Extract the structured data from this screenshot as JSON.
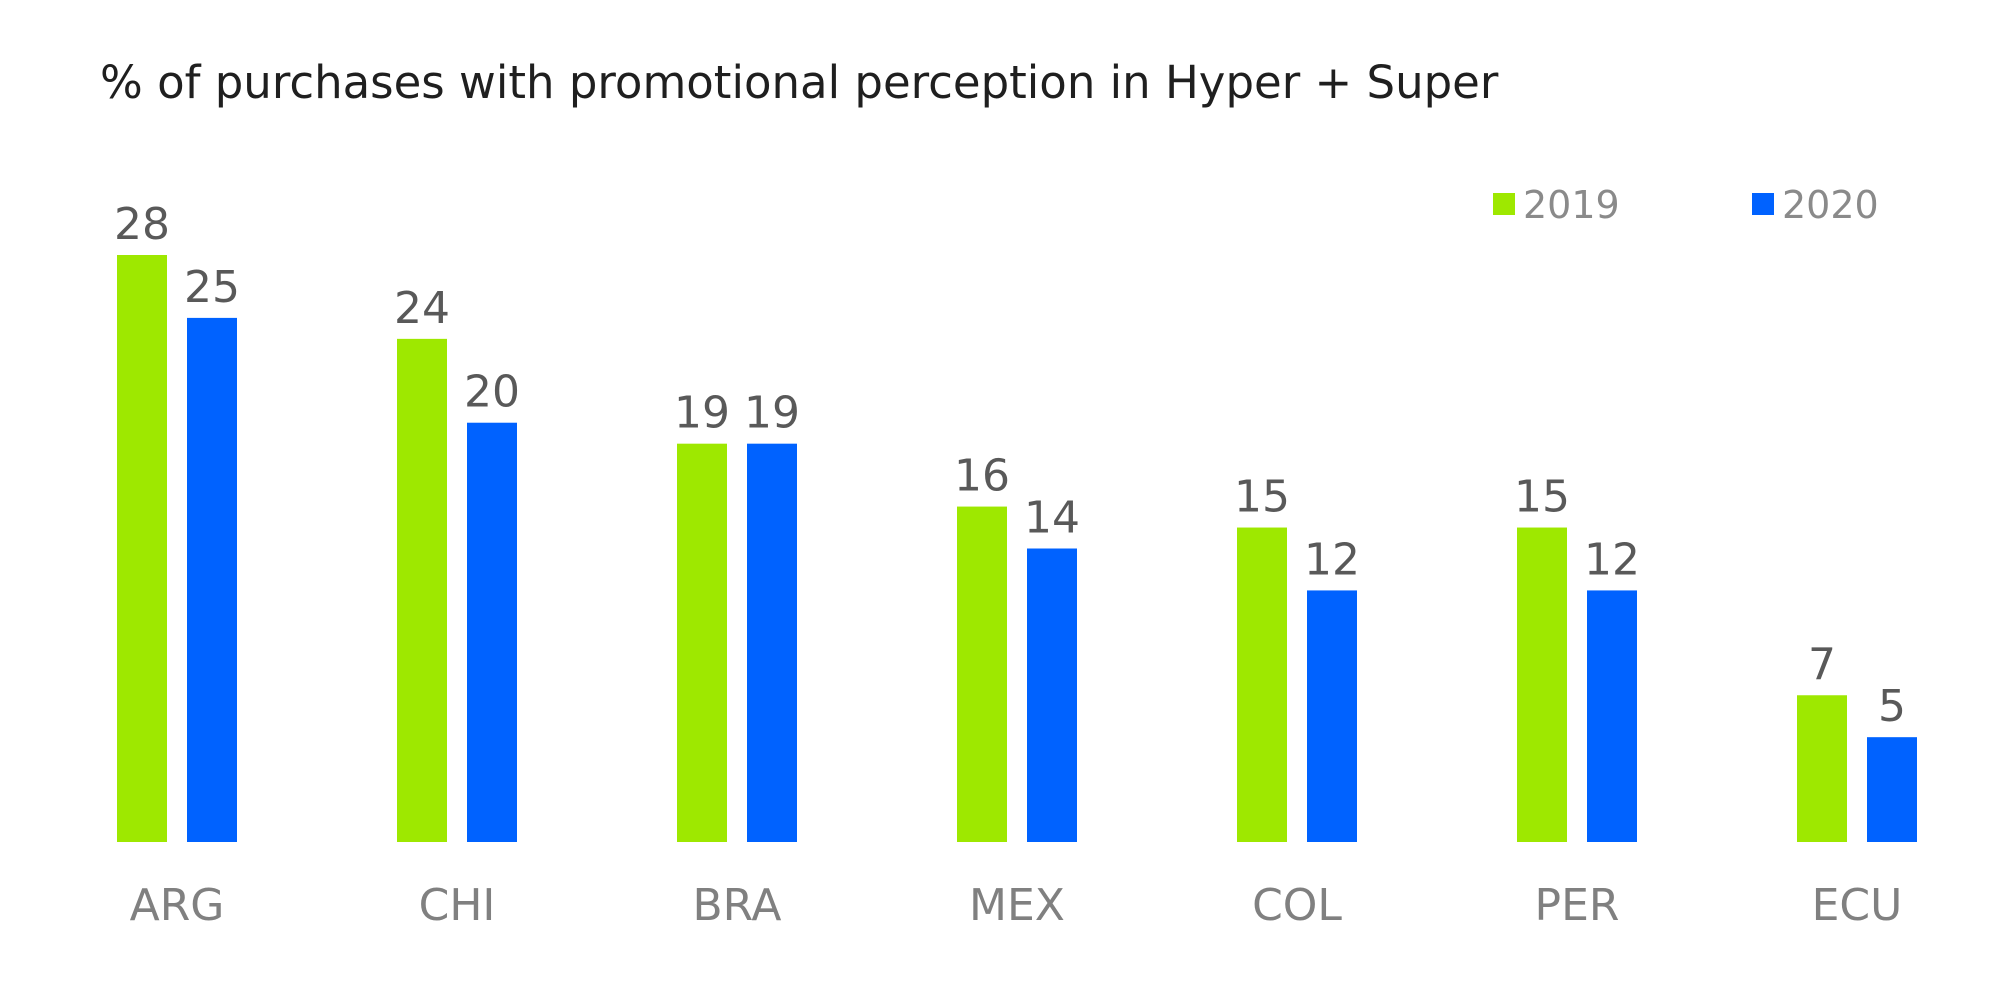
{
  "chart_data": {
    "type": "bar",
    "title": "% of purchases with promotional perception in Hyper + Super",
    "xlabel": "",
    "ylabel": "",
    "categories": [
      "ARG",
      "CHI",
      "BRA",
      "MEX",
      "COL",
      "PER",
      "ECU"
    ],
    "series": [
      {
        "name": "2019",
        "color": "#9EE800",
        "values": [
          28,
          24,
          19,
          16,
          15,
          15,
          7
        ]
      },
      {
        "name": "2020",
        "color": "#0062FF",
        "values": [
          25,
          20,
          19,
          14,
          12,
          12,
          5
        ]
      }
    ],
    "ylim": [
      0,
      28
    ],
    "grid": false,
    "legend_position": "top-right",
    "data_labels": true
  }
}
